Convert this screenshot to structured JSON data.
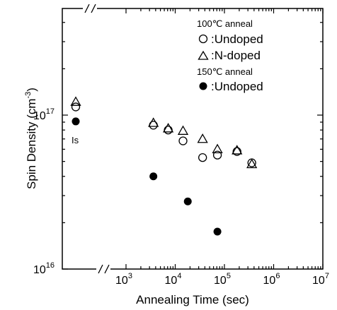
{
  "chart_data": {
    "type": "scatter",
    "title": "",
    "xlabel": "Annealing Time (sec)",
    "ylabel": "Spin Density (cm",
    "ylabel_exp": "-3",
    "ylabel_close": ")",
    "x_scale": "log",
    "y_scale": "log",
    "xlim": [
      100,
      10000000
    ],
    "ylim": [
      1e+16,
      1e+18
    ],
    "grid": false,
    "legend_position": "top-right",
    "x_ticks": [
      {
        "value": 1000,
        "base": "10",
        "exp": "3"
      },
      {
        "value": 10000,
        "base": "10",
        "exp": "4"
      },
      {
        "value": 100000,
        "base": "10",
        "exp": "5"
      },
      {
        "value": 1000000,
        "base": "10",
        "exp": "6"
      },
      {
        "value": 10000000,
        "base": "10",
        "exp": "7"
      }
    ],
    "y_ticks": [
      {
        "value": 1e+16,
        "base": "10",
        "exp": "16"
      },
      {
        "value": 1e+17,
        "base": "10",
        "exp": "17"
      }
    ],
    "initial_state_label": "Is",
    "legend": {
      "group1_header": "100℃ anneal",
      "group2_header": "150℃ anneal"
    },
    "series": [
      {
        "name": ":Undoped",
        "group": "100℃ anneal",
        "marker": "open-circle",
        "initial": 1.13e+17,
        "points": [
          {
            "x": 3600,
            "y": 8.6e+16
          },
          {
            "x": 7200,
            "y": 8e+16
          },
          {
            "x": 14400,
            "y": 6.8e+16
          },
          {
            "x": 36000,
            "y": 5.3e+16
          },
          {
            "x": 72000,
            "y": 5.5e+16
          },
          {
            "x": 180000,
            "y": 5.8e+16
          },
          {
            "x": 360000,
            "y": 4.9e+16
          }
        ]
      },
      {
        "name": ":N-doped",
        "group": "100℃ anneal",
        "marker": "open-triangle",
        "initial": 1.22e+17,
        "points": [
          {
            "x": 3600,
            "y": 8.9e+16
          },
          {
            "x": 7200,
            "y": 8.2e+16
          },
          {
            "x": 14400,
            "y": 7.9e+16
          },
          {
            "x": 36000,
            "y": 7e+16
          },
          {
            "x": 72000,
            "y": 6e+16
          },
          {
            "x": 180000,
            "y": 5.9e+16
          },
          {
            "x": 360000,
            "y": 4.8e+16
          }
        ]
      },
      {
        "name": ":Undoped",
        "group": "150℃ anneal",
        "marker": "filled-circle",
        "initial": 9.1e+16,
        "points": [
          {
            "x": 3600,
            "y": 4e+16
          },
          {
            "x": 18000,
            "y": 2.75e+16
          },
          {
            "x": 72000,
            "y": 1.75e+16
          }
        ]
      }
    ]
  }
}
